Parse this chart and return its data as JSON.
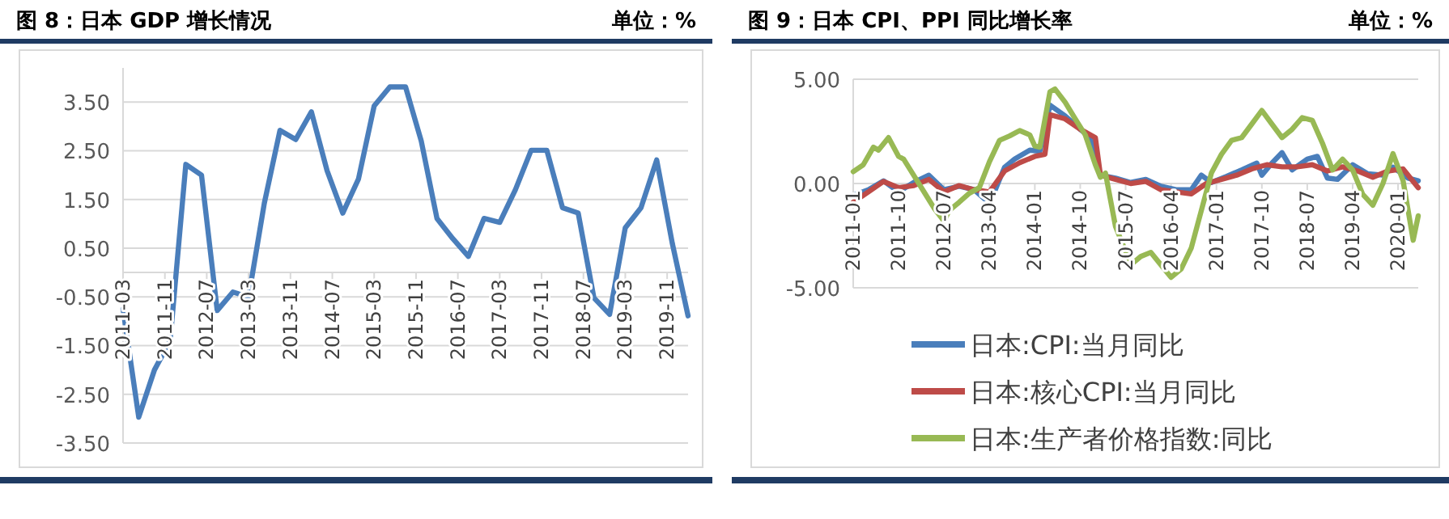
{
  "chart_data": [
    {
      "type": "line",
      "title": "图 8：日本 GDP 增长情况",
      "subtitle": "单位：%",
      "color": "#4a7ebb",
      "grid": "y",
      "x": [
        "2011-03",
        "2011-06",
        "2011-09",
        "2011-12",
        "2012-03",
        "2012-06",
        "2012-09",
        "2012-12",
        "2013-03",
        "2013-06",
        "2013-09",
        "2013-12",
        "2014-03",
        "2014-06",
        "2014-09",
        "2014-12",
        "2015-03",
        "2015-06",
        "2015-09",
        "2015-12",
        "2016-03",
        "2016-06",
        "2016-09",
        "2016-12",
        "2017-03",
        "2017-06",
        "2017-09",
        "2017-12",
        "2018-03",
        "2018-06",
        "2018-09",
        "2018-12",
        "2019-03",
        "2019-06",
        "2019-09",
        "2019-12",
        "2020-03"
      ],
      "values": [
        -0.75,
        -2.97,
        -2.0,
        -1.4,
        2.22,
        2.0,
        -0.78,
        -0.4,
        -0.5,
        1.42,
        2.92,
        2.73,
        3.3,
        2.09,
        1.22,
        1.92,
        3.42,
        3.81,
        3.81,
        2.7,
        1.11,
        0.7,
        0.33,
        1.11,
        1.03,
        1.7,
        2.51,
        2.51,
        1.33,
        1.22,
        -0.52,
        -0.86,
        0.92,
        1.33,
        2.31,
        0.59,
        -0.89
      ],
      "xlim": [
        "2011-03",
        "2020-03"
      ],
      "xticks": [
        "2011-03",
        "2011-11",
        "2012-07",
        "2013-03",
        "2013-11",
        "2014-07",
        "2015-03",
        "2015-11",
        "2016-07",
        "2017-03",
        "2017-11",
        "2018-07",
        "2019-03",
        "2019-11"
      ],
      "ylim": [
        -3.5,
        4.2
      ],
      "yticks": [
        {
          "value": -3.5,
          "label": "-3.50"
        },
        {
          "value": -2.5,
          "label": "-2.50"
        },
        {
          "value": -1.5,
          "label": "-1.50"
        },
        {
          "value": -0.5,
          "label": "-0.50"
        },
        {
          "value": 0.5,
          "label": "0.50"
        },
        {
          "value": 1.5,
          "label": "1.50"
        },
        {
          "value": 2.5,
          "label": "2.50"
        },
        {
          "value": 3.5,
          "label": "3.50"
        }
      ]
    },
    {
      "type": "line",
      "title": "图 9：日本 CPI、PPI 同比增长率",
      "subtitle": "单位：%",
      "grid": "y",
      "legend": "bottom",
      "xlim": [
        "2011-01",
        "2020-05"
      ],
      "xticks": [
        "2011-01",
        "2011-10",
        "2012-07",
        "2013-04",
        "2014-01",
        "2014-10",
        "2015-07",
        "2016-04",
        "2017-01",
        "2017-10",
        "2018-07",
        "2019-04",
        "2020-01"
      ],
      "ylim": [
        -5,
        5
      ],
      "yticks": [
        {
          "value": -5,
          "label": "-5.00"
        },
        {
          "value": 0,
          "label": "0.00"
        },
        {
          "value": 5,
          "label": "5.00"
        }
      ],
      "series": [
        {
          "name": "日本:CPI:当月同比",
          "color": "#4a7ebb",
          "x": [
            "2011-01",
            "2011-04",
            "2011-07",
            "2011-10",
            "2012-01",
            "2012-04",
            "2012-07",
            "2012-10",
            "2013-01",
            "2013-03",
            "2013-05",
            "2013-07",
            "2013-09",
            "2013-12",
            "2014-02",
            "2014-04",
            "2014-07",
            "2014-10",
            "2014-12",
            "2015-02",
            "2015-05",
            "2015-08",
            "2015-11",
            "2016-02",
            "2016-05",
            "2016-08",
            "2016-10",
            "2016-12",
            "2017-03",
            "2017-06",
            "2017-09",
            "2017-10",
            "2017-12",
            "2018-02",
            "2018-04",
            "2018-07",
            "2018-09",
            "2018-11",
            "2019-01",
            "2019-04",
            "2019-07",
            "2019-10",
            "2019-12",
            "2020-03",
            "2020-05"
          ],
          "values": [
            -0.57,
            -0.3,
            0.13,
            -0.4,
            0.05,
            0.4,
            -0.3,
            -0.13,
            -0.3,
            -0.73,
            -0.4,
            0.78,
            1.17,
            1.6,
            1.55,
            3.76,
            3.24,
            2.6,
            2.2,
            0.4,
            0.26,
            0.05,
            0.2,
            -0.13,
            -0.3,
            -0.3,
            0.4,
            0.05,
            0.34,
            0.65,
            0.98,
            0.4,
            0.98,
            1.48,
            0.65,
            1.17,
            1.3,
            0.26,
            0.2,
            0.9,
            0.47,
            0.4,
            0.78,
            0.26,
            0.13
          ]
        },
        {
          "name": "日本:核心CPI:当月同比",
          "color": "#be4b48",
          "x": [
            "2011-01",
            "2011-04",
            "2011-07",
            "2011-10",
            "2012-01",
            "2012-04",
            "2012-07",
            "2012-10",
            "2013-01",
            "2013-04",
            "2013-07",
            "2013-10",
            "2014-01",
            "2014-03",
            "2014-04",
            "2014-07",
            "2014-10",
            "2015-01",
            "2015-02",
            "2015-05",
            "2015-08",
            "2015-11",
            "2016-02",
            "2016-05",
            "2016-08",
            "2016-11",
            "2017-02",
            "2017-05",
            "2017-08",
            "2017-11",
            "2018-02",
            "2018-05",
            "2018-08",
            "2018-11",
            "2019-02",
            "2019-05",
            "2019-08",
            "2019-11",
            "2020-02",
            "2020-05"
          ],
          "values": [
            -0.9,
            -0.4,
            0.1,
            -0.2,
            -0.1,
            0.2,
            -0.4,
            -0.1,
            -0.3,
            -0.4,
            0.6,
            1.0,
            1.3,
            1.4,
            3.3,
            3.1,
            2.6,
            2.2,
            0.4,
            0.2,
            0.0,
            0.1,
            -0.3,
            -0.4,
            -0.5,
            0.0,
            0.2,
            0.4,
            0.7,
            0.9,
            0.8,
            0.8,
            0.9,
            0.6,
            0.8,
            0.6,
            0.3,
            0.6,
            0.7,
            -0.2
          ]
        },
        {
          "name": "日本:生产者价格指数:同比",
          "color": "#98b954",
          "x": [
            "2011-01",
            "2011-03",
            "2011-05",
            "2011-06",
            "2011-08",
            "2011-10",
            "2011-11",
            "2012-01",
            "2012-03",
            "2012-05",
            "2012-07",
            "2012-08",
            "2012-10",
            "2012-12",
            "2013-02",
            "2013-04",
            "2013-06",
            "2013-08",
            "2013-10",
            "2013-12",
            "2014-01",
            "2014-02",
            "2014-04",
            "2014-05",
            "2014-07",
            "2014-09",
            "2014-11",
            "2015-01",
            "2015-02",
            "2015-03",
            "2015-05",
            "2015-07",
            "2015-08",
            "2015-10",
            "2015-12",
            "2016-02",
            "2016-04",
            "2016-06",
            "2016-08",
            "2016-10",
            "2016-12",
            "2017-02",
            "2017-04",
            "2017-06",
            "2017-08",
            "2017-10",
            "2017-12",
            "2018-02",
            "2018-04",
            "2018-06",
            "2018-08",
            "2018-10",
            "2018-12",
            "2019-02",
            "2019-04",
            "2019-06",
            "2019-08",
            "2019-10",
            "2019-12",
            "2020-02",
            "2020-04",
            "2020-05"
          ],
          "values": [
            0.57,
            0.9,
            1.74,
            1.6,
            2.2,
            1.3,
            1.17,
            0.39,
            -0.39,
            -1.17,
            -1.8,
            -1.3,
            -0.9,
            -0.47,
            -0.2,
            1.04,
            2.07,
            2.28,
            2.54,
            2.33,
            1.8,
            1.74,
            4.4,
            4.53,
            3.9,
            3.1,
            2.33,
            0.9,
            0.3,
            0.5,
            -2.07,
            -3.24,
            -3.9,
            -3.5,
            -3.3,
            -3.9,
            -4.5,
            -4.1,
            -3.1,
            -1.3,
            0.5,
            1.4,
            2.07,
            2.2,
            2.85,
            3.5,
            2.85,
            2.2,
            2.6,
            3.16,
            3.03,
            1.94,
            0.65,
            1.17,
            0.65,
            -0.52,
            -1.04,
            0.0,
            1.43,
            0.13,
            -2.72,
            -1.55
          ]
        }
      ]
    }
  ]
}
